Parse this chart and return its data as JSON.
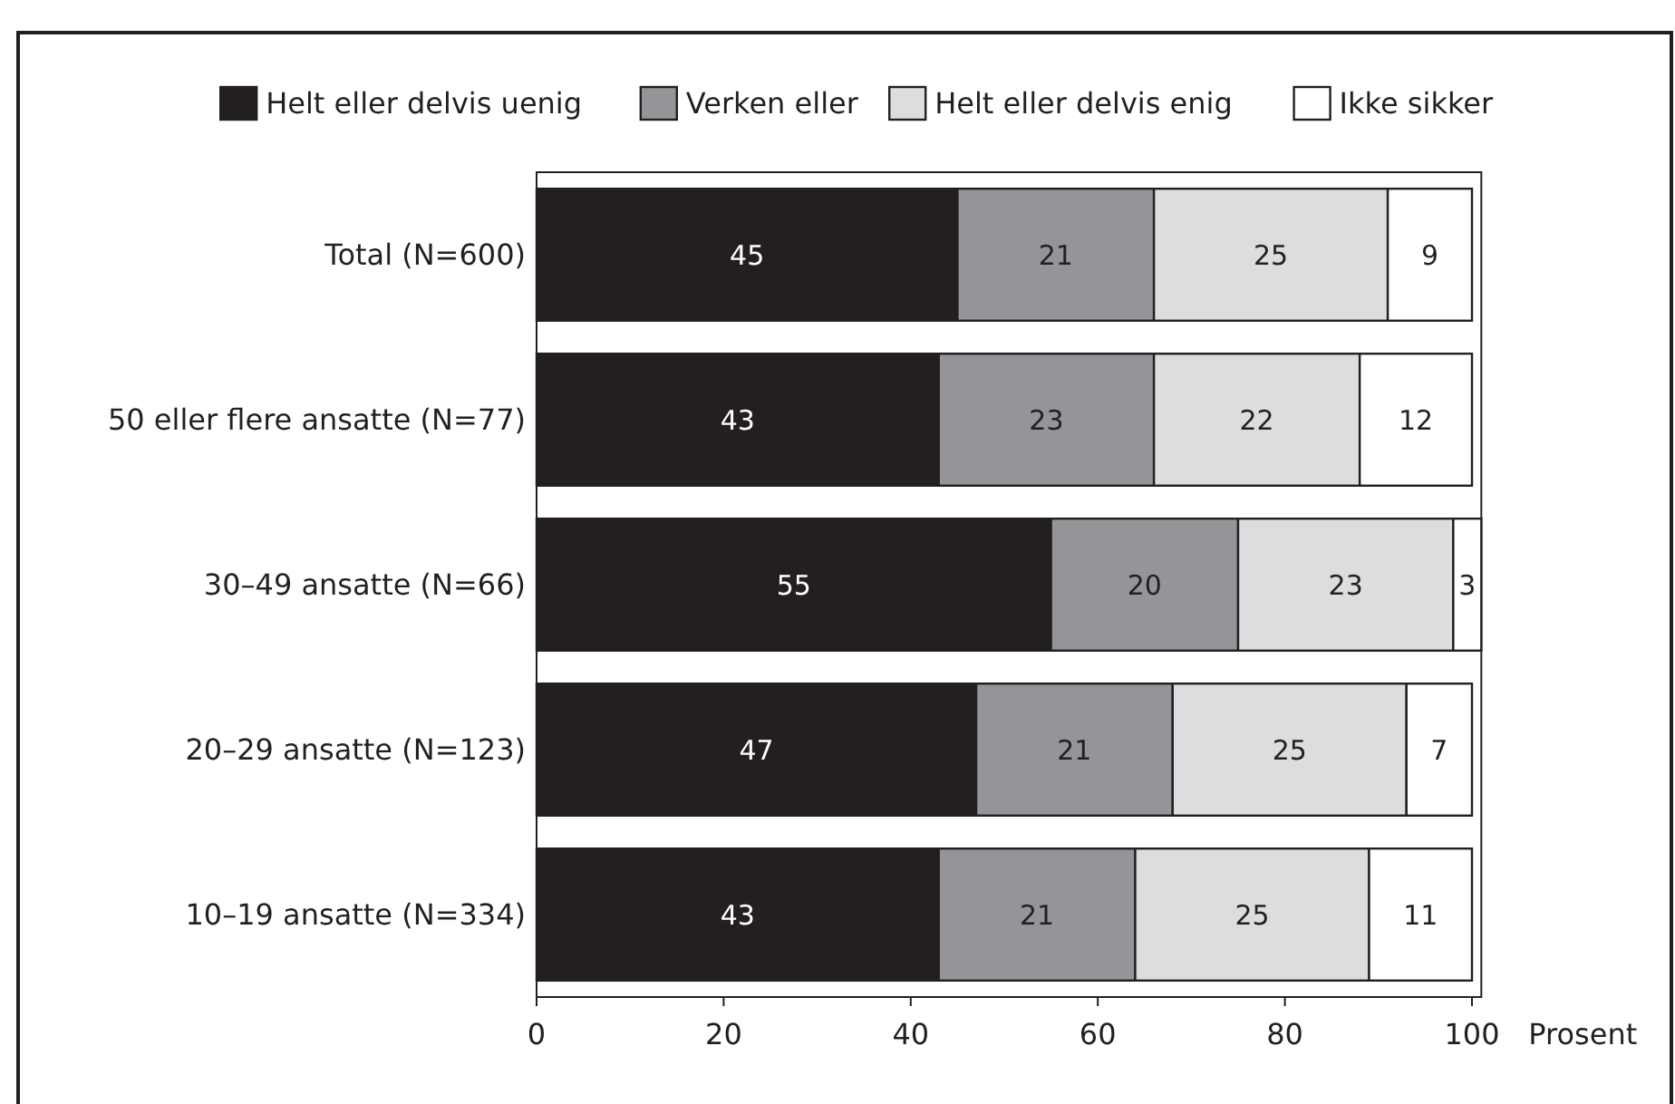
{
  "chart_data": {
    "type": "bar",
    "orientation": "horizontal",
    "stacked": true,
    "xlabel": "Prosent",
    "categories": [
      "Total (N=600)",
      "50 eller flere ansatte (N=77)",
      "30–49 ansatte (N=66)",
      "20–29 ansatte (N=123)",
      "10–19 ansatte (N=334)"
    ],
    "series": [
      {
        "name": "Helt eller delvis uenig",
        "color": "#231f20",
        "values": [
          45,
          43,
          55,
          47,
          43
        ]
      },
      {
        "name": "Verken eller",
        "color": "#939598",
        "values": [
          21,
          23,
          20,
          21,
          21
        ]
      },
      {
        "name": "Helt eller delvis enig",
        "color": "#dcdddf",
        "values": [
          25,
          22,
          23,
          25,
          25
        ]
      },
      {
        "name": "Ikke sikker",
        "color": "#ffffff",
        "values": [
          9,
          12,
          3,
          7,
          11
        ]
      }
    ],
    "xlim": [
      0,
      101
    ],
    "xticks": [
      0,
      20,
      40,
      60,
      80,
      100
    ],
    "data_labels": true,
    "legend": "top"
  }
}
